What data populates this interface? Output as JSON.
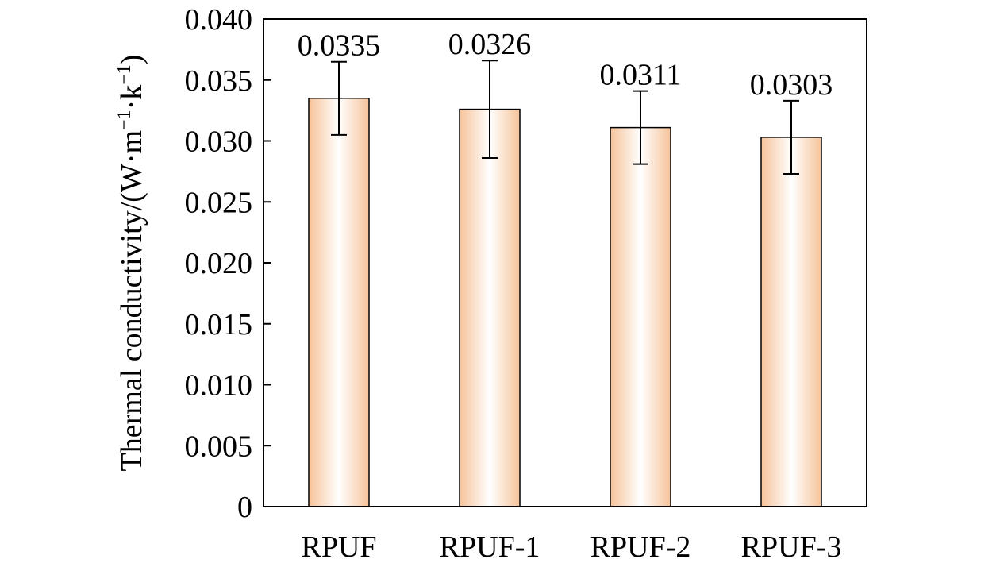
{
  "chart_data": {
    "type": "bar",
    "title": "",
    "xlabel": "",
    "ylabel": {
      "base": "Thermal conductivity/(W·m",
      "exp1": "−1",
      "mid": "·k",
      "exp2": "−1",
      "end": ")"
    },
    "categories": [
      "RPUF",
      "RPUF-1",
      "RPUF-2",
      "RPUF-3"
    ],
    "values": [
      0.0335,
      0.0326,
      0.0311,
      0.0303
    ],
    "value_labels": [
      "0.0335",
      "0.0326",
      "0.0311",
      "0.0303"
    ],
    "error_bars": [
      {
        "low": 0.0305,
        "high": 0.0365
      },
      {
        "low": 0.0286,
        "high": 0.0366
      },
      {
        "low": 0.0281,
        "high": 0.0341
      },
      {
        "low": 0.0273,
        "high": 0.0333
      }
    ],
    "ylim": [
      0,
      0.04
    ],
    "yticks": [
      0,
      0.005,
      0.01,
      0.015,
      0.02,
      0.025,
      0.03,
      0.035,
      0.04
    ],
    "ytick_labels": [
      "0",
      "0.005",
      "0.010",
      "0.015",
      "0.020",
      "0.025",
      "0.030",
      "0.035",
      "0.040"
    ],
    "grid": false,
    "colors": {
      "bar_edge": "#f6c39a",
      "bar_center": "#ffffff",
      "outline": "#000000"
    }
  }
}
